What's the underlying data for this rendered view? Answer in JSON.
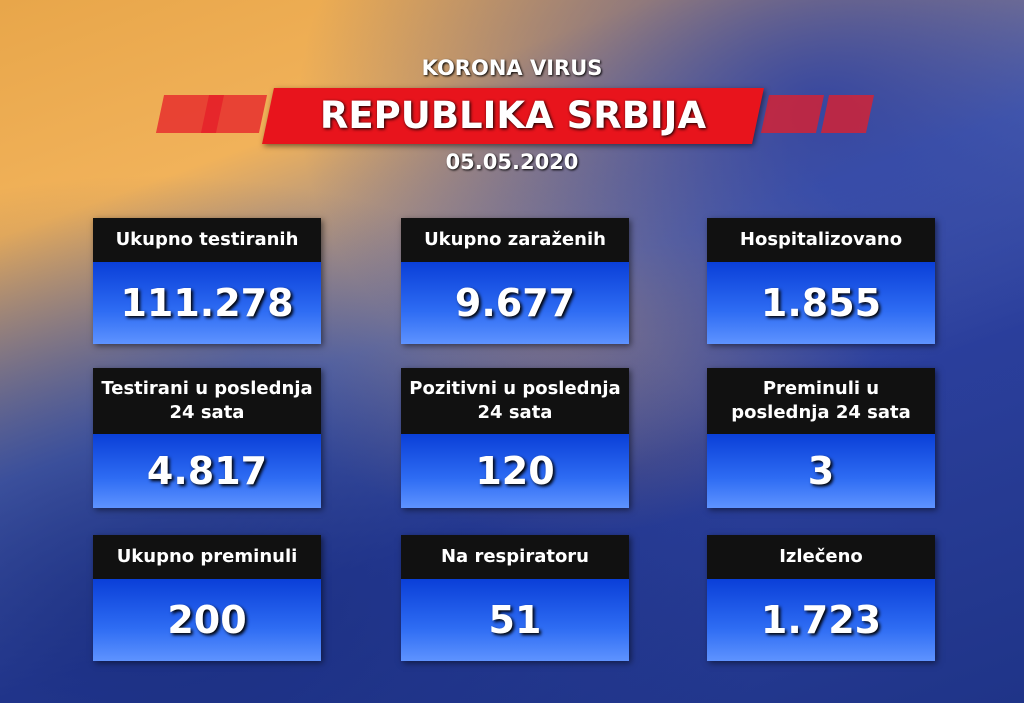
{
  "header": {
    "subtitle": "KORONA VIRUS",
    "title": "REPUBLIKA SRBIJA",
    "date": "05.05.2020"
  },
  "cards": [
    {
      "label": "Ukupno testiranih",
      "value": "111.278"
    },
    {
      "label": "Ukupno zaraženih",
      "value": "9.677"
    },
    {
      "label": "Hospitalizovano",
      "value": "1.855"
    },
    {
      "label": "Testirani u poslednja 24 sata",
      "value": "4.817"
    },
    {
      "label": "Pozitivni u poslednja 24 sata",
      "value": "120"
    },
    {
      "label": "Preminuli u poslednja 24 sata",
      "value": "3"
    },
    {
      "label": "Ukupno preminuli",
      "value": "200"
    },
    {
      "label": "Na respiratoru",
      "value": "51"
    },
    {
      "label": "Izlečeno",
      "value": "1.723"
    }
  ]
}
